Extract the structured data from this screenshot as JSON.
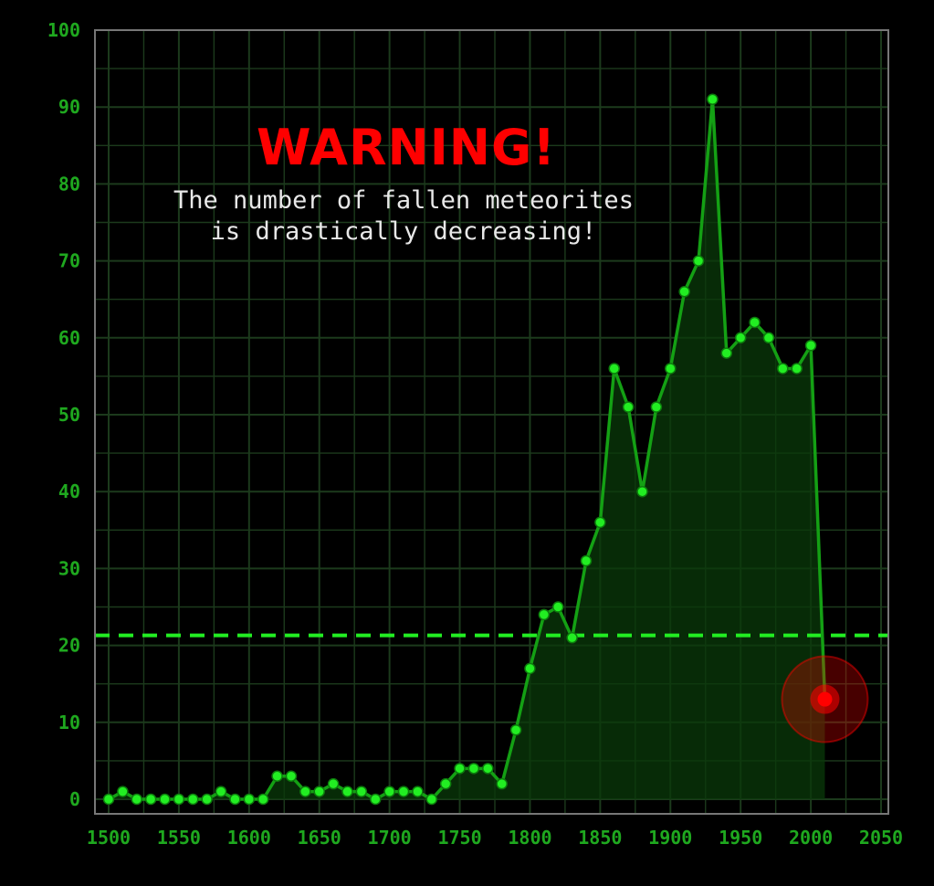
{
  "chart_data": {
    "type": "line",
    "title": "WARNING!",
    "subtitle_lines": [
      "The number of fallen meteorites",
      "is drastically decreasing!"
    ],
    "xlabel": "",
    "ylabel": "",
    "xlim": [
      1500,
      2050
    ],
    "ylim": [
      0,
      100
    ],
    "x_ticks": [
      "1500",
      "1550",
      "1600",
      "1650",
      "1700",
      "1750",
      "1800",
      "1850",
      "1900",
      "1950",
      "2000",
      "2050"
    ],
    "y_ticks": [
      "0",
      "10",
      "20",
      "30",
      "40",
      "50",
      "60",
      "70",
      "80",
      "90",
      "100"
    ],
    "grid": true,
    "reference_line": {
      "y": 21.3,
      "style": "dashed"
    },
    "highlight_point": {
      "x": 2010,
      "y": 13
    },
    "series": [
      {
        "x": [
          1500,
          1510,
          1520,
          1530,
          1540,
          1550,
          1560,
          1570,
          1580,
          1590,
          1600,
          1610,
          1620,
          1630,
          1640,
          1650,
          1660,
          1670,
          1680,
          1690,
          1700,
          1710,
          1720,
          1730,
          1740,
          1750,
          1760,
          1770,
          1780,
          1790,
          1800,
          1810,
          1820,
          1830,
          1840,
          1850,
          1860,
          1870,
          1880,
          1890,
          1900,
          1910,
          1920,
          1930,
          1940,
          1950,
          1960,
          1970,
          1980,
          1990,
          2000,
          2010
        ],
        "values": [
          0,
          1,
          0,
          0,
          0,
          0,
          0,
          0,
          1,
          0,
          0,
          0,
          3,
          3,
          1,
          1,
          2,
          1,
          1,
          0,
          1,
          1,
          1,
          0,
          2,
          4,
          4,
          4,
          2,
          9,
          17,
          24,
          25,
          21,
          31,
          36,
          56,
          51,
          40,
          51,
          56,
          66,
          70,
          91,
          58,
          60,
          62,
          60,
          56,
          56,
          59,
          13
        ]
      }
    ],
    "colors": {
      "line": "#14a014",
      "marker": "#22ee22",
      "fill": "#0a3a0a",
      "grid": "#1c3a1c",
      "axis": "#777777",
      "ticks": "#1fa81f",
      "reference": "#22ee22",
      "title": "#ff0000",
      "subtitle": "#e8e8e8",
      "highlight": "#ff0000"
    }
  }
}
